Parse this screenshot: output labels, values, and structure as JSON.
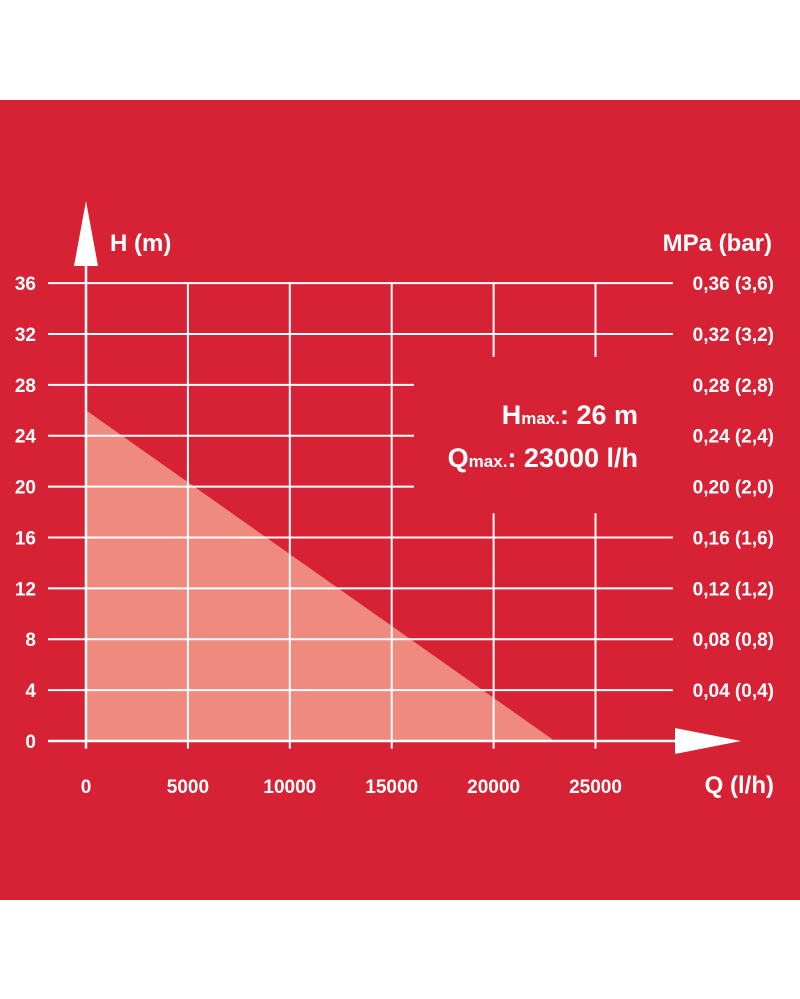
{
  "colors": {
    "background": "#d62234",
    "grid": "#ffffff",
    "area_fill": "#ee8a7e",
    "text": "#ffffff"
  },
  "chart_data": {
    "type": "area",
    "title": "",
    "xlabel": "Q (l/h)",
    "ylabel": "H (m)",
    "y2label": "MPa (bar)",
    "xlim": [
      0,
      30000
    ],
    "ylim": [
      0,
      36
    ],
    "x_ticks": [
      "0",
      "5000",
      "10000",
      "15000",
      "20000",
      "25000"
    ],
    "x_tick_values": [
      0,
      5000,
      10000,
      15000,
      20000,
      25000
    ],
    "y_ticks": [
      "0",
      "4",
      "8",
      "12",
      "16",
      "20",
      "24",
      "28",
      "32",
      "36"
    ],
    "y_tick_values": [
      0,
      4,
      8,
      12,
      16,
      20,
      24,
      28,
      32,
      36
    ],
    "y2_ticks": [
      "0,04 (0,4)",
      "0,08 (0,8)",
      "0,12 (1,2)",
      "0,16 (1,6)",
      "0,20 (2,0)",
      "0,24 (2,4)",
      "0,28 (2,8)",
      "0,32 (3,2)",
      "0,36 (3,6)"
    ],
    "y2_tick_values": [
      4,
      8,
      12,
      16,
      20,
      24,
      28,
      32,
      36
    ],
    "grid": true,
    "series": [
      {
        "x": [
          0,
          23000
        ],
        "y": [
          26,
          0
        ]
      }
    ],
    "annotations": {
      "hmax_main": "H",
      "hmax_sub": "max.",
      "hmax_value": ": 26 m",
      "qmax_main": "Q",
      "qmax_sub": "max.",
      "qmax_value": ": 23000 l/h"
    }
  }
}
